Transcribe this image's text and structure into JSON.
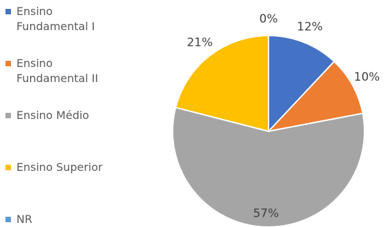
{
  "chart_data": {
    "type": "pie",
    "categories": [
      "Ensino Fundamental I",
      "Ensino Fundamental II",
      "Ensino Médio",
      "Ensino Superior",
      "NR"
    ],
    "values": [
      12,
      10,
      57,
      21,
      0
    ],
    "value_labels": [
      "12%",
      "10%",
      "57%",
      "21%",
      "0%"
    ],
    "colors": [
      "#4472c4",
      "#ed7d31",
      "#a5a5a5",
      "#ffc000",
      "#5b9bd5"
    ],
    "legend": "left"
  }
}
